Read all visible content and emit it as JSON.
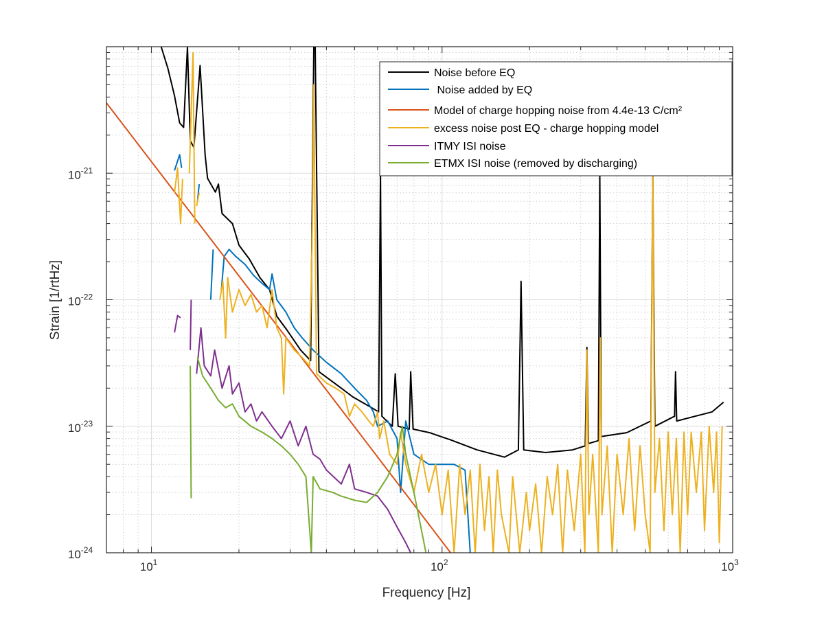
{
  "chart_data": {
    "type": "line",
    "title": "",
    "xlabel": "Frequency [Hz]",
    "ylabel": "Strain [1/rtHz]",
    "xscale": "log",
    "yscale": "log",
    "xlim": [
      7,
      1000
    ],
    "ylim": [
      1e-24,
      1e-20
    ],
    "grid": true,
    "legend_position": "top-right",
    "x_ticks": [
      {
        "base": "10",
        "exp": "1",
        "value": 10
      },
      {
        "base": "10",
        "exp": "2",
        "value": 100
      },
      {
        "base": "10",
        "exp": "3",
        "value": 1000
      }
    ],
    "y_ticks": [
      {
        "base": "10",
        "exp": "-21",
        "value": 1e-21
      },
      {
        "base": "10",
        "exp": "-22",
        "value": 1e-22
      },
      {
        "base": "10",
        "exp": "-23",
        "value": 1e-23
      },
      {
        "base": "10",
        "exp": "-24",
        "value": 1e-24
      }
    ],
    "series": [
      {
        "name": "Noise before EQ",
        "color": "#000000",
        "points": [
          [
            10.8,
            1e-20
          ],
          [
            11.4,
            6.7e-21
          ],
          [
            12.0,
            4.1e-21
          ],
          [
            12.5,
            2.5e-21
          ],
          [
            12.9,
            2.3e-21
          ],
          [
            13.3,
            1e-20
          ],
          [
            13.6,
            1.8e-21
          ],
          [
            14.0,
            1.6e-21
          ],
          [
            14.7,
            7.1e-21
          ],
          [
            15.3,
            1.4e-21
          ],
          [
            15.6,
            9.1e-22
          ],
          [
            16.6,
            7.1e-22
          ],
          [
            17.0,
            8.2e-22
          ],
          [
            17.5,
            4.8e-22
          ],
          [
            19.0,
            4e-22
          ],
          [
            20.0,
            2.7e-22
          ],
          [
            21.7,
            2.1e-22
          ],
          [
            23.6,
            1.5e-22
          ],
          [
            25.5,
            1.2e-22
          ],
          [
            27.0,
            7.4e-23
          ],
          [
            29.2,
            5.8e-23
          ],
          [
            32.6,
            4e-23
          ],
          [
            35.3,
            3.3e-23
          ],
          [
            36.2,
            1e-20
          ],
          [
            36.6,
            1e-20
          ],
          [
            37.7,
            2.7e-23
          ],
          [
            40.4,
            2.4e-23
          ],
          [
            45.0,
            2e-23
          ],
          [
            49.4,
            1.7e-23
          ],
          [
            55.8,
            1.45e-23
          ],
          [
            60.5,
            1.3e-23
          ],
          [
            61.4,
            1e-21
          ],
          [
            62.1,
            1.2e-23
          ],
          [
            67.4,
            1e-23
          ],
          [
            69,
            2.6e-23
          ],
          [
            70.6,
            1e-23
          ],
          [
            77.1,
            9.5e-24
          ],
          [
            78,
            2.7e-23
          ],
          [
            79.5,
            9.5e-24
          ],
          [
            90.6,
            8.9e-24
          ],
          [
            107,
            7.8e-24
          ],
          [
            132,
            6.5e-24
          ],
          [
            164,
            5.7e-24
          ],
          [
            183,
            6.5e-24
          ],
          [
            187,
            1.4e-22
          ],
          [
            191,
            6.5e-24
          ],
          [
            227,
            6.2e-24
          ],
          [
            281,
            6.5e-24
          ],
          [
            311,
            7e-24
          ],
          [
            315,
            4.2e-23
          ],
          [
            319,
            7.3e-24
          ],
          [
            345,
            7.7e-24
          ],
          [
            349,
            1e-21
          ],
          [
            353,
            8.3e-24
          ],
          [
            432,
            8.9e-24
          ],
          [
            523,
            1.1e-23
          ],
          [
            531,
            1e-21
          ],
          [
            540,
            1e-23
          ],
          [
            631,
            1.2e-23
          ],
          [
            636,
            2.7e-23
          ],
          [
            642,
            1.1e-23
          ],
          [
            742,
            1.2e-23
          ],
          [
            850,
            1.3e-23
          ],
          [
            930,
            1.55e-23
          ]
        ]
      },
      {
        "name": " Noise added by EQ",
        "color": "#0072BD",
        "points": [
          [
            12.0,
            1.05e-21
          ],
          [
            12.5,
            1.4e-21
          ],
          [
            12.7,
            1.1e-21
          ],
          null,
          [
            14.4,
            6e-22
          ],
          [
            14.6,
            8.2e-22
          ],
          null,
          [
            16.0,
            1e-22
          ],
          [
            16.3,
            2.5e-22
          ],
          null,
          [
            17.4,
            1.2e-22
          ],
          [
            17.8,
            2.2e-22
          ],
          [
            18.5,
            2.5e-22
          ],
          [
            19.5,
            2.2e-22
          ],
          [
            21,
            1.9e-22
          ],
          [
            22.5,
            1.55e-22
          ],
          [
            24,
            1.35e-22
          ],
          [
            25.5,
            1.2e-22
          ],
          [
            26,
            1.6e-22
          ],
          [
            27,
            1e-22
          ],
          [
            29,
            8e-23
          ],
          [
            31,
            6e-23
          ],
          [
            33,
            5e-23
          ],
          [
            36,
            4e-23
          ],
          [
            40,
            3.2e-23
          ],
          [
            45,
            2.6e-23
          ],
          [
            50,
            2e-23
          ],
          [
            55,
            1.6e-23
          ],
          [
            58,
            1.3e-23
          ],
          [
            60,
            1e-23
          ],
          [
            65,
            1.1e-23
          ],
          [
            70,
            8e-24
          ],
          [
            72,
            3e-24
          ],
          [
            75,
            1.1e-23
          ],
          [
            80,
            6e-24
          ],
          [
            90,
            5e-24
          ],
          [
            100,
            5e-24
          ],
          [
            110,
            5e-24
          ],
          [
            120,
            4.5e-24
          ],
          [
            125,
            1e-24
          ]
        ]
      },
      {
        "name": "Model of charge hopping noise from 4.4e-13 C/cm²",
        "color": "#D95319",
        "points": [
          [
            7,
            3.6e-21
          ],
          [
            20,
            1.54e-22
          ],
          [
            50,
            9.9e-24
          ],
          [
            107,
            1e-24
          ]
        ]
      },
      {
        "name": "excess noise post EQ - charge hopping model",
        "color": "#EDB120",
        "points": [
          [
            12.0,
            7e-22
          ],
          [
            12.3,
            1.1e-21
          ],
          [
            12.6,
            4e-22
          ],
          [
            12.8,
            9e-22
          ],
          null,
          [
            13.5,
            1e-21
          ],
          [
            13.9,
            9e-21
          ],
          [
            14.1,
            4e-22
          ],
          null,
          [
            14.3,
            5.5e-22
          ],
          [
            14.6,
            7e-22
          ],
          null,
          [
            17.2,
            1e-22
          ],
          [
            17.6,
            1.4e-22
          ],
          [
            18,
            5e-23
          ],
          [
            18.3,
            1.5e-22
          ],
          [
            19,
            8e-23
          ],
          [
            20,
            1.2e-22
          ],
          [
            21,
            9e-23
          ],
          [
            22,
            1.1e-22
          ],
          [
            23,
            8e-23
          ],
          [
            24,
            9e-23
          ],
          [
            25,
            6e-23
          ],
          [
            26,
            1.2e-22
          ],
          [
            27,
            6e-23
          ],
          [
            28,
            5e-23
          ],
          [
            28.5,
            1.8e-23
          ],
          [
            29,
            5e-23
          ],
          [
            31,
            4e-23
          ],
          [
            33,
            3.5e-23
          ],
          [
            35,
            3e-23
          ],
          [
            35.8,
            4e-22
          ],
          [
            36.2,
            5e-21
          ],
          [
            36.6,
            3e-22
          ],
          [
            37,
            2.6e-23
          ],
          [
            40,
            2.2e-23
          ],
          [
            43,
            2e-23
          ],
          [
            46,
            1.8e-23
          ],
          [
            48,
            1.2e-23
          ],
          [
            50,
            1.5e-23
          ],
          [
            53,
            1.3e-23
          ],
          [
            56,
            1.1e-23
          ],
          [
            58,
            1e-23
          ],
          [
            60,
            1.3e-23
          ],
          [
            61,
            8e-24
          ],
          [
            63,
            1.1e-23
          ],
          [
            66,
            6e-24
          ],
          [
            70,
            5e-24
          ],
          [
            72,
            9e-24
          ],
          [
            75,
            5e-24
          ],
          [
            80,
            3e-24
          ],
          [
            85,
            6e-24
          ],
          [
            90,
            3e-24
          ],
          [
            95,
            5e-24
          ],
          [
            100,
            2e-24
          ],
          [
            105,
            4.5e-24
          ],
          [
            110,
            1e-24
          ],
          [
            115,
            5e-24
          ],
          [
            120,
            2e-24
          ],
          [
            125,
            4.5e-24
          ],
          [
            130,
            1e-24
          ],
          [
            135,
            5e-24
          ],
          [
            140,
            1.5e-24
          ],
          [
            145,
            4e-24
          ],
          [
            150,
            1e-24
          ],
          [
            155,
            4.5e-24
          ],
          [
            160,
            2e-24
          ],
          [
            170,
            1e-24
          ],
          [
            175,
            4e-24
          ],
          [
            185,
            1e-24
          ],
          [
            195,
            3e-24
          ],
          [
            200,
            1.5e-24
          ],
          [
            210,
            3.5e-24
          ],
          [
            220,
            1e-24
          ],
          [
            230,
            4e-24
          ],
          [
            240,
            2e-24
          ],
          [
            250,
            5e-24
          ],
          [
            260,
            1e-24
          ],
          [
            270,
            4.5e-24
          ],
          [
            285,
            1.5e-24
          ],
          [
            300,
            6e-24
          ],
          [
            310,
            1e-24
          ],
          [
            315,
            4e-23
          ],
          [
            320,
            2e-24
          ],
          [
            330,
            6e-24
          ],
          [
            345,
            1e-24
          ],
          [
            350,
            5e-23
          ],
          [
            355,
            2e-24
          ],
          [
            370,
            7e-24
          ],
          [
            385,
            1e-24
          ],
          [
            400,
            6e-24
          ],
          [
            420,
            2e-24
          ],
          [
            440,
            8e-24
          ],
          [
            460,
            1.5e-24
          ],
          [
            480,
            7e-24
          ],
          [
            500,
            2e-24
          ],
          [
            520,
            1e-24
          ],
          [
            531,
            1e-21
          ],
          [
            540,
            3e-24
          ],
          [
            560,
            8e-24
          ],
          [
            580,
            1.5e-24
          ],
          [
            600,
            9e-24
          ],
          [
            620,
            2e-24
          ],
          [
            640,
            8e-24
          ],
          [
            660,
            1e-24
          ],
          [
            680,
            9e-24
          ],
          [
            700,
            2e-24
          ],
          [
            720,
            9e-24
          ],
          [
            750,
            3e-24
          ],
          [
            780,
            9e-24
          ],
          [
            800,
            1.5e-24
          ],
          [
            830,
            1e-23
          ],
          [
            860,
            3e-24
          ],
          [
            880,
            9e-24
          ],
          [
            900,
            1.2e-24
          ],
          [
            920,
            1e-23
          ]
        ]
      },
      {
        "name": "ITMY ISI noise",
        "color": "#7E2F8E",
        "points": [
          [
            12.0,
            5.5e-23
          ],
          [
            12.3,
            7.5e-23
          ],
          [
            12.6,
            7.2e-23
          ],
          null,
          [
            13.6,
            4e-23
          ],
          [
            13.7,
            1e-22
          ],
          null,
          [
            14.3,
            2.6e-23
          ],
          [
            14.8,
            6e-23
          ],
          [
            15.2,
            3e-23
          ],
          [
            16,
            2.5e-23
          ],
          [
            16.5,
            4e-23
          ],
          [
            17.5,
            2e-23
          ],
          [
            18.5,
            3e-23
          ],
          [
            19,
            1.8e-23
          ],
          [
            20,
            2.2e-23
          ],
          [
            21,
            1.3e-23
          ],
          [
            22,
            1.5e-23
          ],
          [
            23,
            1.1e-23
          ],
          [
            24,
            1.3e-23
          ],
          [
            26,
            1e-23
          ],
          [
            28,
            8e-24
          ],
          [
            30,
            1.1e-23
          ],
          [
            32,
            7e-24
          ],
          [
            34,
            1e-23
          ],
          [
            36,
            6e-24
          ],
          [
            38,
            5.5e-24
          ],
          [
            40,
            4.5e-24
          ],
          [
            45,
            3.5e-24
          ],
          [
            48,
            5e-24
          ],
          [
            50,
            3.2e-24
          ],
          [
            55,
            3e-24
          ],
          [
            60,
            2.8e-24
          ],
          [
            65,
            2.2e-24
          ],
          [
            70,
            1.6e-24
          ],
          [
            75,
            1.2e-24
          ],
          [
            78,
            1e-24
          ]
        ]
      },
      {
        "name": "ETMX ISI noise (removed by discharging)",
        "color": "#77AC30",
        "points": [
          [
            13.6,
            3e-23
          ],
          [
            13.7,
            2.7e-24
          ],
          null,
          [
            14.4,
            3.5e-23
          ],
          [
            15,
            2.5e-23
          ],
          [
            16,
            2e-23
          ],
          [
            17,
            1.6e-23
          ],
          [
            18,
            1.4e-23
          ],
          [
            19,
            1.5e-23
          ],
          [
            20,
            1.2e-23
          ],
          [
            22,
            1e-23
          ],
          [
            24,
            9e-24
          ],
          [
            26,
            8e-24
          ],
          [
            28,
            7e-24
          ],
          [
            30,
            6e-24
          ],
          [
            32,
            5e-24
          ],
          [
            34,
            4e-24
          ],
          [
            35.5,
            1e-24
          ],
          [
            36,
            4e-24
          ],
          [
            38,
            3.2e-24
          ],
          [
            42,
            3e-24
          ],
          [
            45,
            2.8e-24
          ],
          [
            50,
            2.6e-24
          ],
          [
            55,
            2.5e-24
          ],
          [
            60,
            3e-24
          ],
          [
            65,
            4e-24
          ],
          [
            70,
            6e-24
          ],
          [
            73,
            1e-23
          ],
          [
            75,
            6e-24
          ],
          [
            80,
            3e-24
          ],
          [
            85,
            1.5e-24
          ],
          [
            88,
            1e-24
          ]
        ]
      }
    ]
  }
}
